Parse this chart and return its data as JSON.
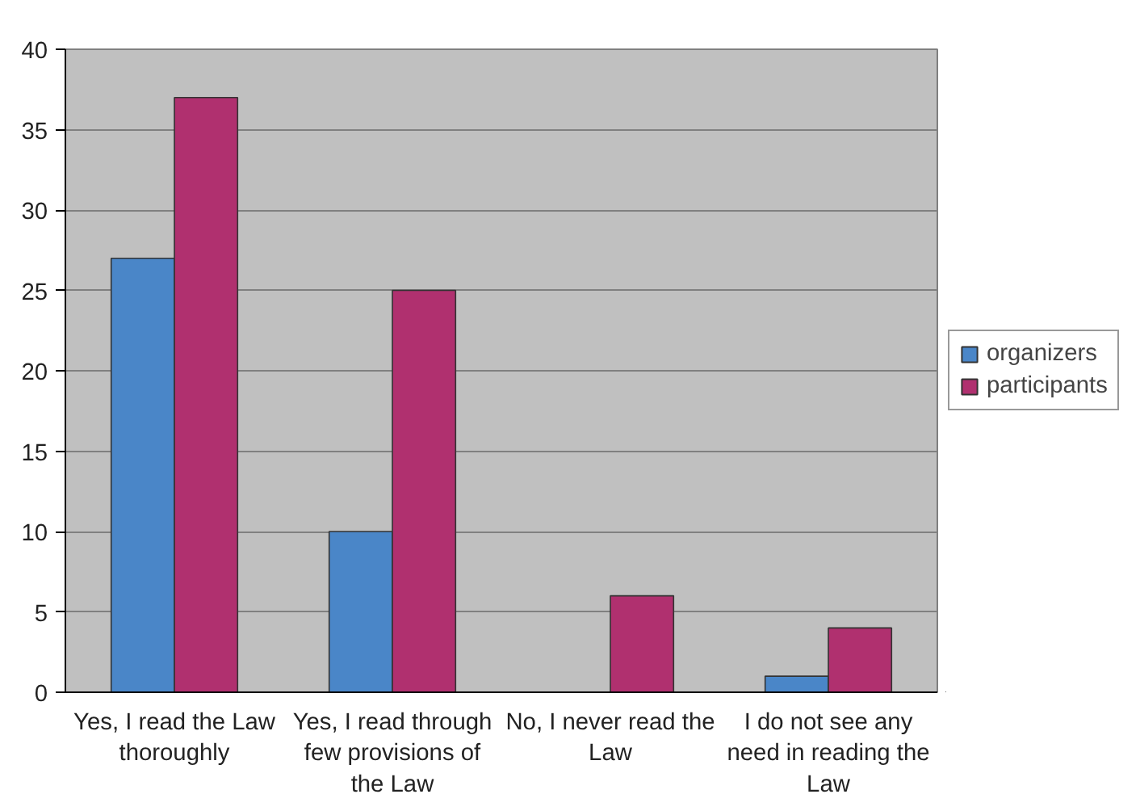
{
  "chart_data": {
    "type": "bar",
    "categories": [
      "Yes, I read the Law thoroughly",
      "Yes, I read through few provisions of the Law",
      "No, I never read the Law",
      "I do not see any need in reading the Law"
    ],
    "series": [
      {
        "name": "organizers",
        "color": "#4a86c8",
        "values": [
          27,
          10,
          0,
          1
        ]
      },
      {
        "name": "participants",
        "color": "#b0306f",
        "values": [
          37,
          25,
          6,
          4
        ]
      }
    ],
    "ylim": [
      0,
      40
    ],
    "yticks": [
      0,
      5,
      10,
      15,
      20,
      25,
      30,
      35,
      40
    ],
    "grid": "y",
    "legend": "right"
  }
}
